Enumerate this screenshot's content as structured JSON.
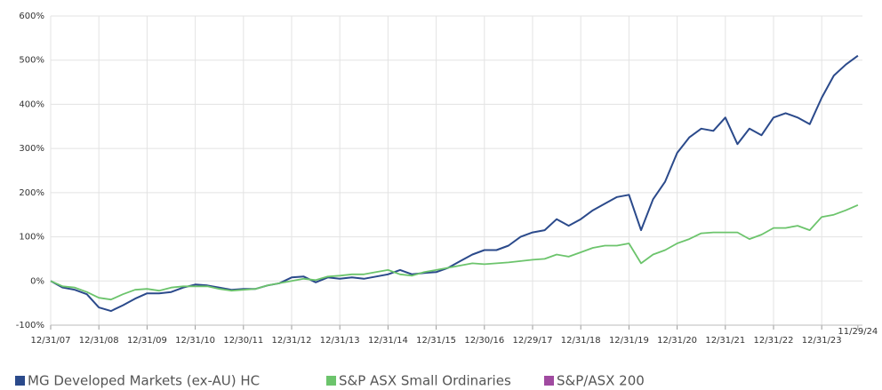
{
  "chart_data": {
    "type": "line",
    "categories": [
      "12/31/07",
      null,
      null,
      null,
      "12/31/08",
      null,
      null,
      null,
      "12/31/09",
      null,
      null,
      null,
      "12/31/10",
      null,
      null,
      null,
      "12/30/11",
      null,
      null,
      null,
      "12/31/12",
      null,
      null,
      null,
      "12/31/13",
      null,
      null,
      null,
      "12/31/14",
      null,
      null,
      null,
      "12/31/15",
      null,
      null,
      null,
      "12/30/16",
      null,
      null,
      null,
      "12/29/17",
      null,
      null,
      null,
      "12/31/18",
      null,
      null,
      null,
      "12/31/19",
      null,
      null,
      null,
      "12/31/20",
      null,
      null,
      null,
      "12/31/21",
      null,
      null,
      null,
      "12/31/22",
      null,
      null,
      null,
      "12/31/23",
      null,
      null,
      "11/29/24"
    ],
    "series": [
      {
        "name": "MG Developed Markets (ex-AU) HC",
        "color": "#2b4a8b",
        "values": [
          0,
          -15,
          -20,
          -30,
          -60,
          -68,
          -55,
          -40,
          -28,
          -28,
          -25,
          -15,
          -8,
          -10,
          -15,
          -20,
          -18,
          -18,
          -10,
          -5,
          8,
          10,
          -3,
          8,
          5,
          8,
          5,
          10,
          15,
          25,
          15,
          18,
          20,
          30,
          45,
          60,
          70,
          70,
          80,
          100,
          110,
          115,
          140,
          125,
          140,
          160,
          175,
          190,
          195,
          115,
          185,
          225,
          290,
          325,
          345,
          340,
          370,
          310,
          345,
          330,
          370,
          380,
          370,
          355,
          415,
          465,
          490,
          510
        ]
      },
      {
        "name": "S&P ASX Small Ordinaries",
        "color": "#6cc46c",
        "values": [
          0,
          -12,
          -15,
          -25,
          -38,
          -42,
          -30,
          -20,
          -18,
          -22,
          -15,
          -12,
          -12,
          -12,
          -18,
          -22,
          -20,
          -18,
          -10,
          -5,
          0,
          5,
          2,
          10,
          12,
          15,
          15,
          20,
          25,
          15,
          12,
          20,
          25,
          30,
          35,
          40,
          38,
          40,
          42,
          45,
          48,
          50,
          60,
          55,
          65,
          75,
          80,
          80,
          85,
          40,
          60,
          70,
          85,
          95,
          108,
          110,
          110,
          110,
          95,
          105,
          120,
          120,
          125,
          115,
          145,
          150,
          160,
          172
        ]
      },
      {
        "name": "S&P/ASX 200",
        "color": "#a04aa0",
        "values": [
          null,
          null,
          null,
          null,
          null,
          null,
          null,
          null,
          null,
          null,
          null,
          null,
          null,
          null,
          null,
          null,
          null,
          null,
          null,
          null,
          null,
          null,
          null,
          null,
          null,
          null,
          null,
          null,
          null,
          null,
          null,
          null,
          null,
          null,
          null,
          null,
          null,
          null,
          null,
          null,
          null,
          null,
          null,
          null,
          null,
          null,
          null,
          null,
          null,
          null,
          null,
          null,
          null,
          null,
          null,
          null,
          null,
          null,
          null,
          null,
          null,
          null,
          null,
          null,
          null,
          null,
          null,
          null
        ]
      }
    ],
    "ylim": [
      -100,
      600
    ],
    "yticks": [
      {
        "value": -100,
        "label": "-100%"
      },
      {
        "value": 0,
        "label": "0%"
      },
      {
        "value": 100,
        "label": "100%"
      },
      {
        "value": 200,
        "label": "200%"
      },
      {
        "value": 300,
        "label": "300%"
      },
      {
        "value": 400,
        "label": "400%"
      },
      {
        "value": 500,
        "label": "500%"
      },
      {
        "value": 600,
        "label": "600%"
      }
    ],
    "grid": true,
    "legend": "bottom"
  }
}
